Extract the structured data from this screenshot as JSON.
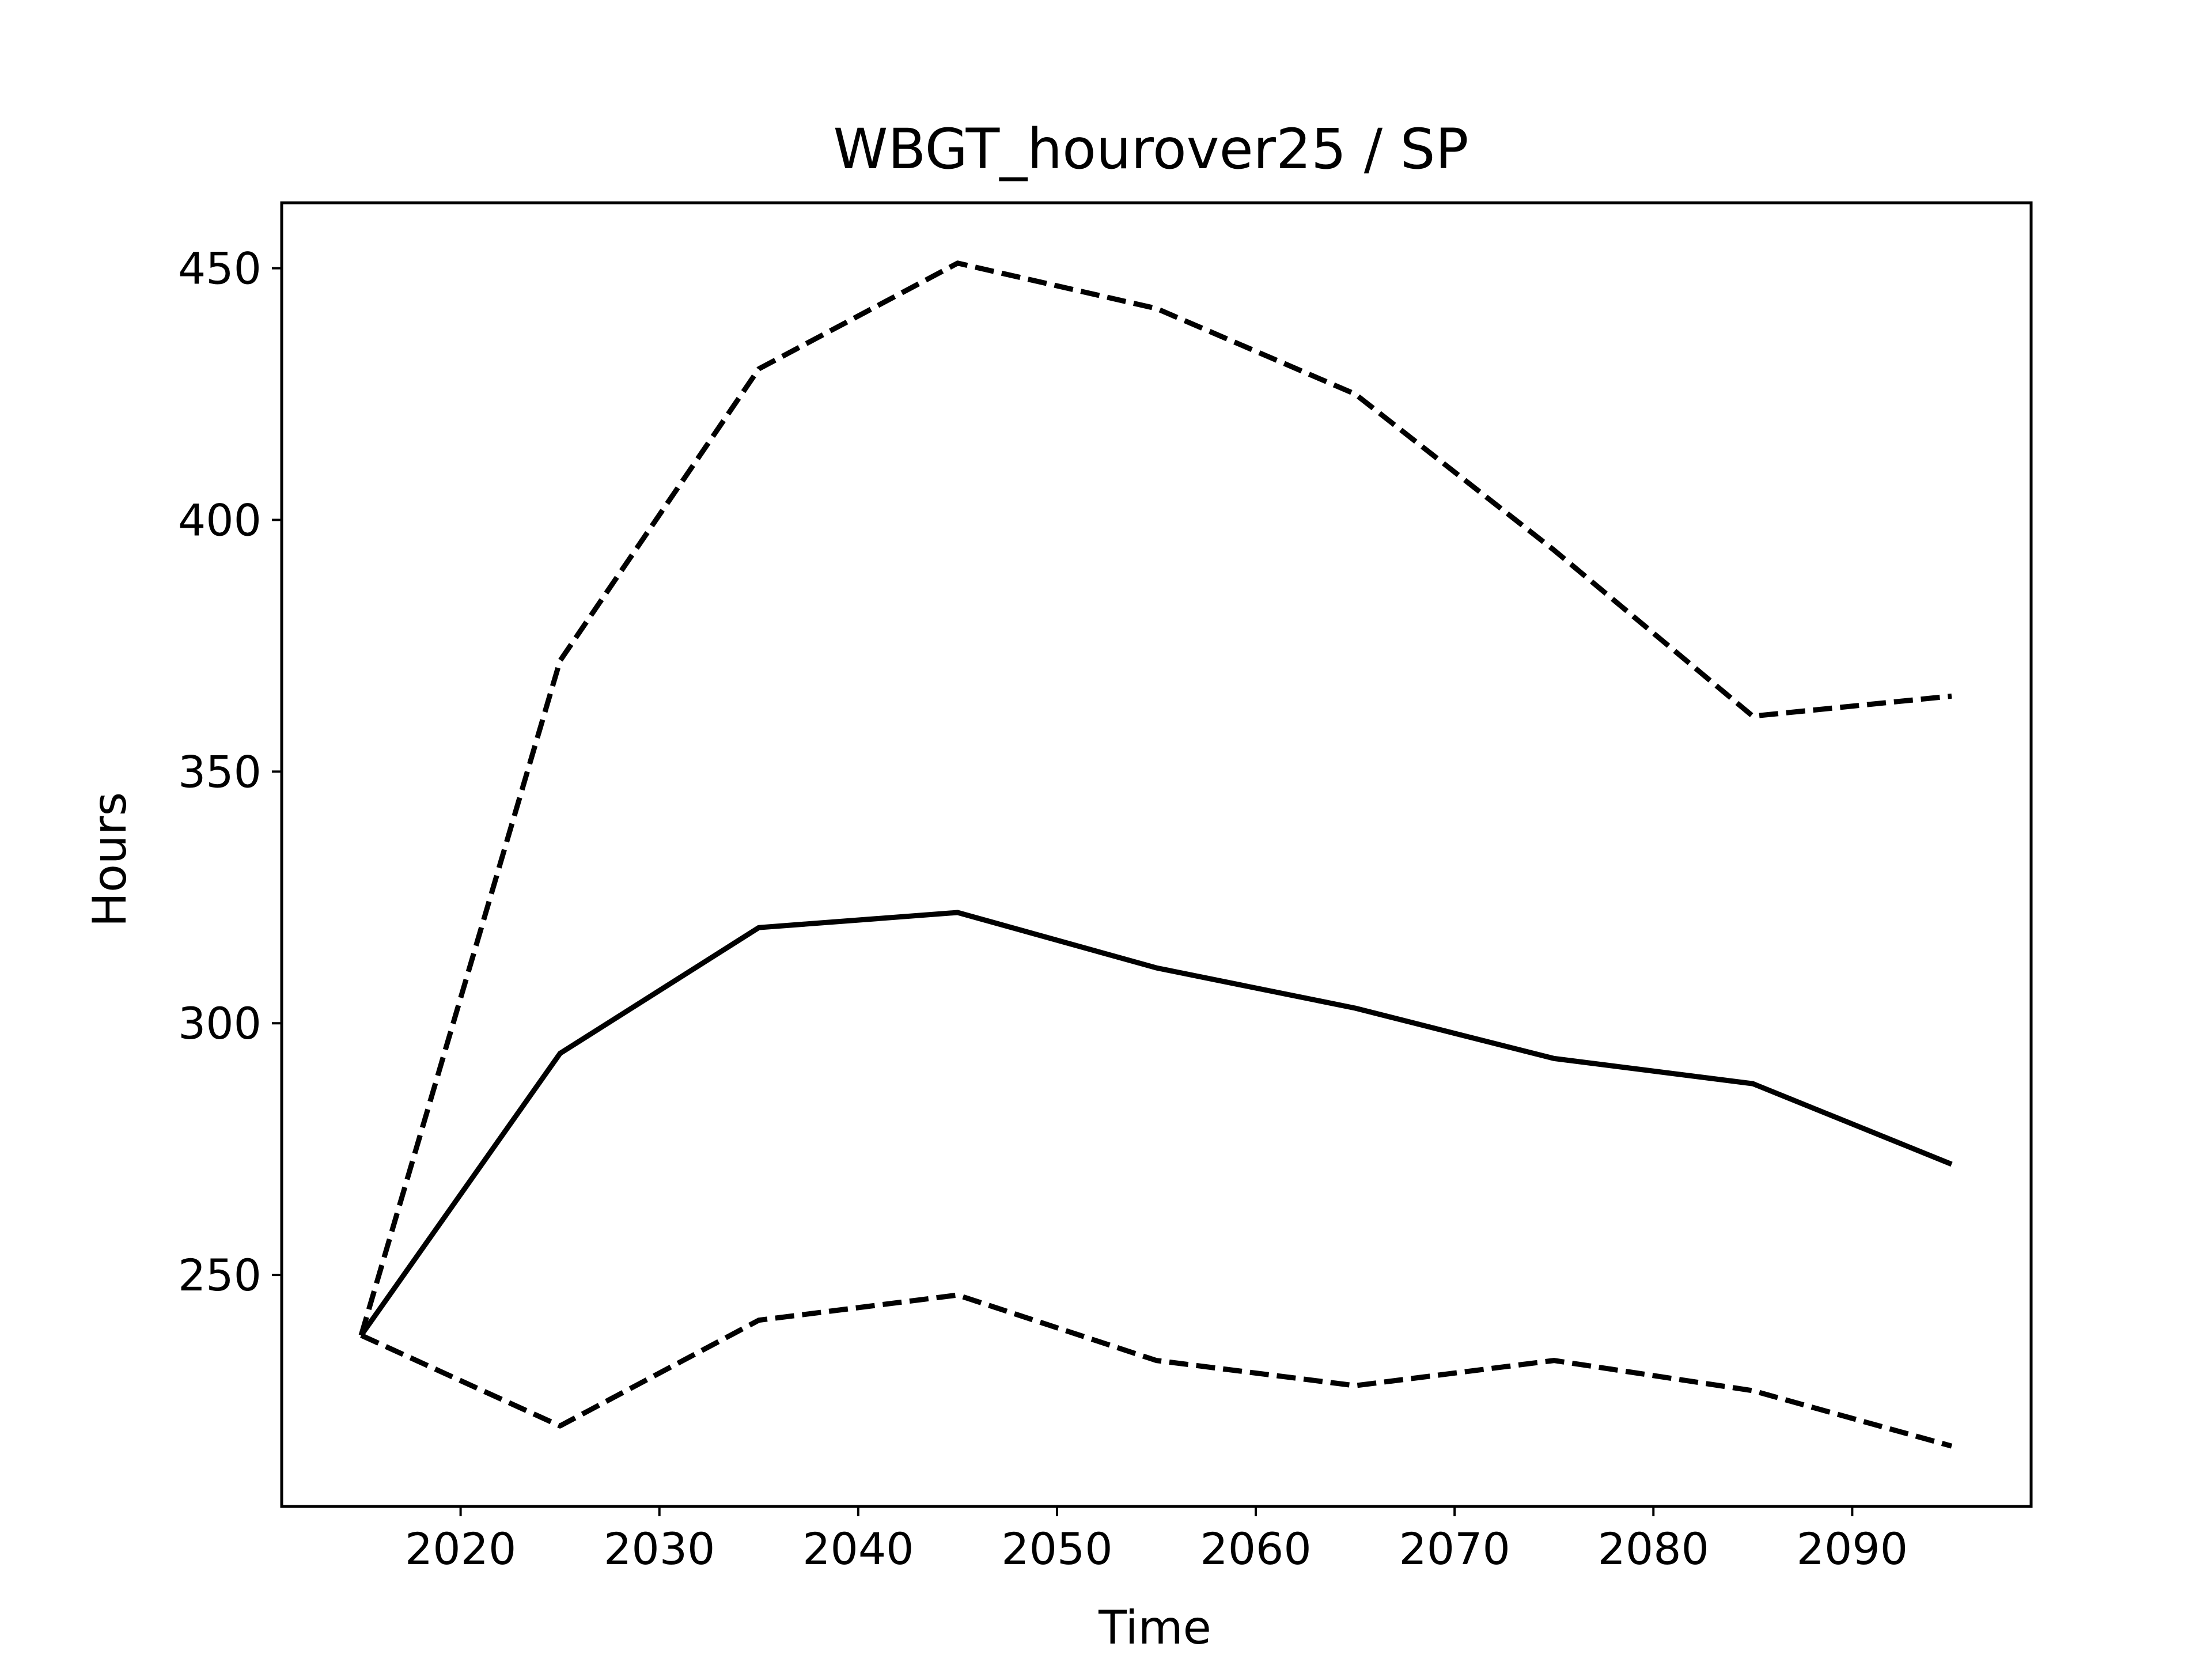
{
  "chart_data": {
    "type": "line",
    "title": "WBGT_hourover25 / SP",
    "xlabel": "Time",
    "ylabel": "Hours",
    "xlim": [
      2011,
      2099
    ],
    "ylim": [
      204,
      463
    ],
    "xticks": [
      2020,
      2030,
      2040,
      2050,
      2060,
      2070,
      2080,
      2090
    ],
    "yticks": [
      250,
      300,
      350,
      400,
      450
    ],
    "grid": false,
    "x": [
      2015,
      2025,
      2035,
      2045,
      2055,
      2065,
      2075,
      2085,
      2095
    ],
    "series": [
      {
        "style": "dashed",
        "color": "#000000",
        "values": [
          238,
          372,
          430,
          451,
          442,
          425,
          394,
          361,
          365
        ]
      },
      {
        "style": "solid",
        "color": "#000000",
        "values": [
          238,
          294,
          319,
          322,
          311,
          303,
          293,
          288,
          272
        ]
      },
      {
        "style": "dashed",
        "color": "#000000",
        "values": [
          238,
          220,
          241,
          246,
          233,
          228,
          233,
          227,
          216
        ]
      }
    ]
  }
}
